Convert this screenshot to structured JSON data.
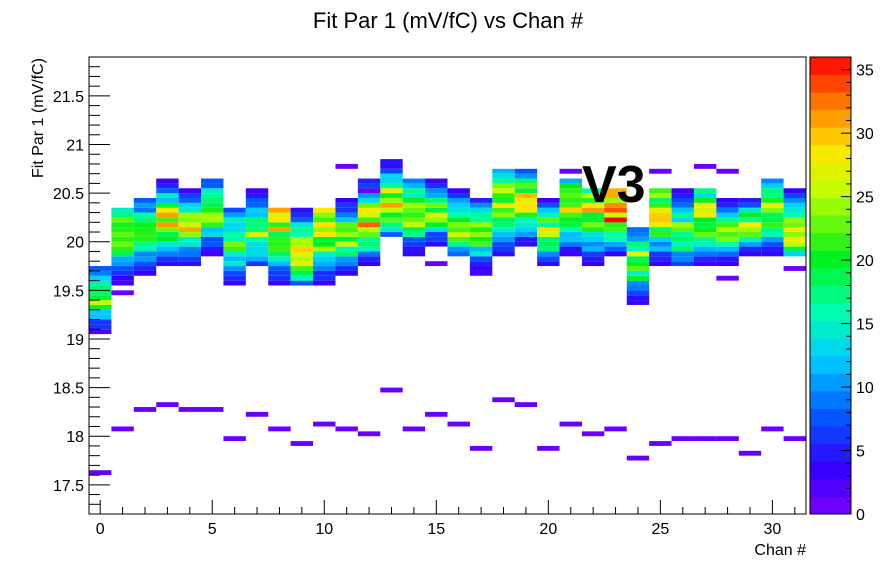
{
  "chart_data": {
    "type": "heatmap",
    "title": "Fit Par 1 (mV/fC) vs Chan #",
    "xlabel": "Chan #",
    "ylabel": "Fit Par 1 (mV/fC)",
    "annotation": "V3",
    "annotation_color": "#e8141b",
    "xlim": [
      -0.5,
      31.5
    ],
    "ylim": [
      17.2,
      21.9
    ],
    "x_ticks": [
      "0",
      "5",
      "10",
      "15",
      "20",
      "25",
      "30"
    ],
    "y_ticks": [
      "17.5",
      "18",
      "18.5",
      "19",
      "19.5",
      "20",
      "20.5",
      "21",
      "21.5"
    ],
    "color_scale": {
      "min": 0,
      "max": 36,
      "ticks": [
        "0",
        "5",
        "10",
        "15",
        "20",
        "25",
        "30",
        "35"
      ]
    },
    "bin_height": 0.05,
    "channels": [
      {
        "chan": 0,
        "low": 19.05,
        "high": 19.75,
        "peak": 19.45,
        "max": 24
      },
      {
        "chan": 1,
        "low": 19.55,
        "high": 20.35,
        "peak": 20.1,
        "max": 24
      },
      {
        "chan": 2,
        "low": 19.65,
        "high": 20.45,
        "peak": 20.1,
        "max": 22
      },
      {
        "chan": 3,
        "low": 19.75,
        "high": 20.65,
        "peak": 20.2,
        "max": 28
      },
      {
        "chan": 4,
        "low": 19.75,
        "high": 20.55,
        "peak": 20.15,
        "max": 26
      },
      {
        "chan": 5,
        "low": 19.85,
        "high": 20.65,
        "peak": 20.3,
        "max": 22
      },
      {
        "chan": 6,
        "low": 19.55,
        "high": 20.35,
        "peak": 20.0,
        "max": 22
      },
      {
        "chan": 7,
        "low": 19.75,
        "high": 20.55,
        "peak": 20.1,
        "max": 22
      },
      {
        "chan": 8,
        "low": 19.55,
        "high": 20.35,
        "peak": 20.25,
        "max": 30
      },
      {
        "chan": 9,
        "low": 19.55,
        "high": 20.35,
        "peak": 19.9,
        "max": 30
      },
      {
        "chan": 10,
        "low": 19.55,
        "high": 20.35,
        "peak": 20.15,
        "max": 30
      },
      {
        "chan": 11,
        "low": 19.65,
        "high": 20.45,
        "peak": 20.05,
        "max": 24
      },
      {
        "chan": 12,
        "low": 19.75,
        "high": 20.65,
        "peak": 20.2,
        "max": 30
      },
      {
        "chan": 13,
        "low": 20.05,
        "high": 20.85,
        "peak": 20.4,
        "max": 28
      },
      {
        "chan": 14,
        "low": 19.85,
        "high": 20.65,
        "peak": 20.3,
        "max": 26
      },
      {
        "chan": 15,
        "low": 19.95,
        "high": 20.65,
        "peak": 20.3,
        "max": 24
      },
      {
        "chan": 16,
        "low": 19.85,
        "high": 20.55,
        "peak": 20.15,
        "max": 26
      },
      {
        "chan": 17,
        "low": 19.65,
        "high": 20.45,
        "peak": 20.1,
        "max": 22
      },
      {
        "chan": 18,
        "low": 19.85,
        "high": 20.75,
        "peak": 20.4,
        "max": 28
      },
      {
        "chan": 19,
        "low": 19.95,
        "high": 20.75,
        "peak": 20.4,
        "max": 28
      },
      {
        "chan": 20,
        "low": 19.75,
        "high": 20.45,
        "peak": 20.1,
        "max": 26
      },
      {
        "chan": 21,
        "low": 19.85,
        "high": 20.65,
        "peak": 20.35,
        "max": 28
      },
      {
        "chan": 22,
        "low": 19.75,
        "high": 20.55,
        "peak": 20.3,
        "max": 28
      },
      {
        "chan": 23,
        "low": 19.85,
        "high": 20.55,
        "peak": 20.35,
        "max": 36
      },
      {
        "chan": 24,
        "low": 19.35,
        "high": 20.15,
        "peak": 19.8,
        "max": 24
      },
      {
        "chan": 25,
        "low": 19.75,
        "high": 20.55,
        "peak": 20.3,
        "max": 28
      },
      {
        "chan": 26,
        "low": 19.75,
        "high": 20.55,
        "peak": 20.1,
        "max": 22
      },
      {
        "chan": 27,
        "low": 19.75,
        "high": 20.55,
        "peak": 20.25,
        "max": 28
      },
      {
        "chan": 28,
        "low": 19.75,
        "high": 20.45,
        "peak": 20.1,
        "max": 24
      },
      {
        "chan": 29,
        "low": 19.85,
        "high": 20.45,
        "peak": 20.15,
        "max": 26
      },
      {
        "chan": 30,
        "low": 19.85,
        "high": 20.65,
        "peak": 20.3,
        "max": 26
      },
      {
        "chan": 31,
        "low": 19.85,
        "high": 20.55,
        "peak": 20.1,
        "max": 26
      }
    ],
    "outliers": [
      [
        0,
        17.6
      ],
      [
        1,
        18.05
      ],
      [
        1,
        19.45
      ],
      [
        2,
        18.25
      ],
      [
        3,
        18.3
      ],
      [
        4,
        18.25
      ],
      [
        5,
        18.25
      ],
      [
        6,
        17.95
      ],
      [
        7,
        18.2
      ],
      [
        8,
        18.05
      ],
      [
        9,
        17.9
      ],
      [
        10,
        18.1
      ],
      [
        11,
        18.05
      ],
      [
        11,
        20.75
      ],
      [
        12,
        18.0
      ],
      [
        12,
        20.5
      ],
      [
        13,
        18.45
      ],
      [
        14,
        18.05
      ],
      [
        15,
        18.2
      ],
      [
        15,
        19.75
      ],
      [
        16,
        18.1
      ],
      [
        17,
        17.85
      ],
      [
        18,
        18.35
      ],
      [
        19,
        18.3
      ],
      [
        20,
        17.85
      ],
      [
        21,
        18.1
      ],
      [
        21,
        20.7
      ],
      [
        22,
        18.0
      ],
      [
        23,
        18.05
      ],
      [
        24,
        17.75
      ],
      [
        25,
        17.9
      ],
      [
        25,
        20.7
      ],
      [
        26,
        17.95
      ],
      [
        27,
        17.95
      ],
      [
        27,
        20.75
      ],
      [
        28,
        17.95
      ],
      [
        28,
        20.7
      ],
      [
        29,
        17.8
      ],
      [
        30,
        18.05
      ],
      [
        31,
        17.95
      ],
      [
        31,
        19.7
      ],
      [
        28,
        19.6
      ]
    ]
  }
}
